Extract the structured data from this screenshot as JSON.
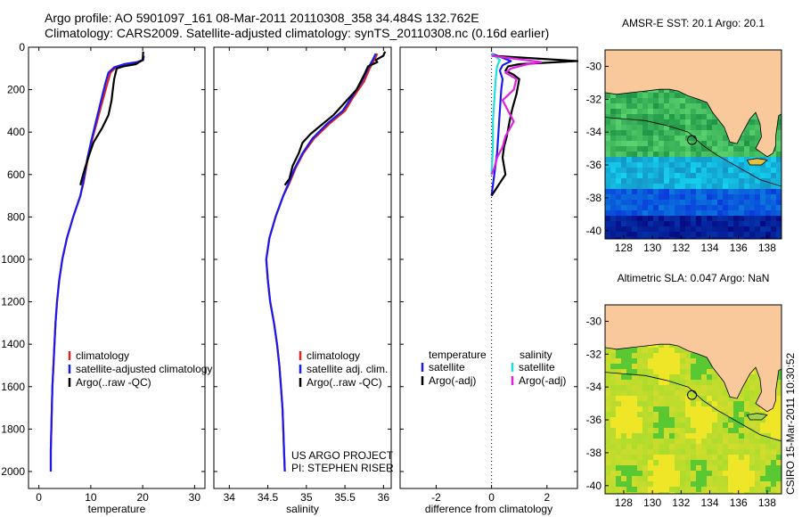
{
  "header": {
    "line1": "Argo profile: AO 5901097_161 08-Mar-2011 20110308_358 34.484S 132.762E",
    "line2": "Climatology: CARS2009. Satellite-adjusted climatology: synTS_20110308.nc (0.16d earlier)"
  },
  "footer": {
    "stamp": "CSIRO 15-Mar-2011 10:30:52"
  },
  "colors": {
    "climatology": "#dd2222",
    "satellite": "#1a1aee",
    "argo": "#000000",
    "satellite_salinity": "#22dddd",
    "argo_salinity": "#e020e0",
    "land": "#f9c89b"
  },
  "chart_data": [
    {
      "type": "line",
      "id": "temperature",
      "xlabel": "temperature",
      "xlim": [
        -2,
        32
      ],
      "ylim": [
        2080,
        0
      ],
      "xticks": [
        0,
        10,
        20,
        30
      ],
      "yticks": [
        0,
        200,
        400,
        600,
        800,
        1000,
        1200,
        1400,
        1600,
        1800,
        2000
      ],
      "legend": [
        "climatology",
        "satellite-adjusted climatology",
        "Argo(..raw -QC)"
      ],
      "series": [
        {
          "name": "climatology",
          "color": "#dd2222",
          "points": [
            [
              20.2,
              40
            ],
            [
              20.1,
              60
            ],
            [
              19.0,
              70
            ],
            [
              16.5,
              80
            ],
            [
              14.8,
              95
            ],
            [
              13.8,
              120
            ],
            [
              13.2,
              170
            ],
            [
              12.3,
              250
            ],
            [
              11.2,
              350
            ],
            [
              10.1,
              450
            ],
            [
              9.4,
              530
            ],
            [
              8.6,
              640
            ],
            [
              8.0,
              700
            ],
            [
              6.6,
              800
            ],
            [
              5.4,
              900
            ],
            [
              4.5,
              1000
            ],
            [
              3.9,
              1100
            ],
            [
              3.5,
              1200
            ],
            [
              3.2,
              1300
            ],
            [
              3.0,
              1400
            ],
            [
              2.8,
              1500
            ],
            [
              2.6,
              1600
            ],
            [
              2.5,
              1700
            ],
            [
              2.4,
              1800
            ],
            [
              2.3,
              1900
            ],
            [
              2.3,
              2000
            ]
          ]
        },
        {
          "name": "satellite-adjusted climatology",
          "color": "#1a1aee",
          "points": [
            [
              20.2,
              40
            ],
            [
              20.1,
              60
            ],
            [
              18.9,
              70
            ],
            [
              16.4,
              80
            ],
            [
              14.5,
              95
            ],
            [
              13.4,
              120
            ],
            [
              12.8,
              170
            ],
            [
              12.0,
              250
            ],
            [
              11.0,
              350
            ],
            [
              10.0,
              450
            ],
            [
              9.3,
              530
            ],
            [
              8.5,
              640
            ],
            [
              8.0,
              700
            ],
            [
              6.6,
              800
            ],
            [
              5.4,
              900
            ],
            [
              4.5,
              1000
            ],
            [
              3.9,
              1100
            ],
            [
              3.5,
              1200
            ],
            [
              3.2,
              1300
            ],
            [
              3.0,
              1400
            ],
            [
              2.8,
              1500
            ],
            [
              2.6,
              1600
            ],
            [
              2.5,
              1700
            ],
            [
              2.4,
              1800
            ],
            [
              2.3,
              1900
            ],
            [
              2.3,
              2000
            ]
          ]
        },
        {
          "name": "Argo(..raw -QC)",
          "color": "#000000",
          "points": [
            [
              20.1,
              20
            ],
            [
              20.0,
              60
            ],
            [
              18.7,
              80
            ],
            [
              16.3,
              90
            ],
            [
              15.0,
              100
            ],
            [
              14.5,
              150
            ],
            [
              14.2,
              210
            ],
            [
              14.0,
              250
            ],
            [
              13.4,
              320
            ],
            [
              12.2,
              380
            ],
            [
              10.5,
              450
            ],
            [
              9.8,
              500
            ],
            [
              9.0,
              560
            ],
            [
              8.4,
              610
            ],
            [
              8.0,
              650
            ]
          ]
        }
      ]
    },
    {
      "type": "line",
      "id": "salinity",
      "xlabel": "salinity",
      "xlim": [
        33.8,
        36.1
      ],
      "ylim": [
        2080,
        0
      ],
      "xticks": [
        34,
        34.5,
        35,
        35.5,
        36
      ],
      "yticks": [
        0,
        200,
        400,
        600,
        800,
        1000,
        1200,
        1400,
        1600,
        1800,
        2000
      ],
      "legend": [
        "climatology",
        "satellite adj. clim.",
        "Argo(..raw -QC)"
      ],
      "annotation": [
        "US ARGO PROJECT",
        "PI: STEPHEN RISER"
      ],
      "series": [
        {
          "name": "climatology",
          "color": "#dd2222",
          "points": [
            [
              35.92,
              30
            ],
            [
              35.88,
              60
            ],
            [
              35.82,
              100
            ],
            [
              35.75,
              160
            ],
            [
              35.6,
              240
            ],
            [
              35.5,
              300
            ],
            [
              35.3,
              360
            ],
            [
              35.1,
              430
            ],
            [
              34.96,
              500
            ],
            [
              34.86,
              570
            ],
            [
              34.78,
              640
            ],
            [
              34.7,
              700
            ],
            [
              34.6,
              800
            ],
            [
              34.52,
              900
            ],
            [
              34.48,
              1000
            ],
            [
              34.5,
              1100
            ],
            [
              34.53,
              1200
            ],
            [
              34.58,
              1300
            ],
            [
              34.62,
              1400
            ],
            [
              34.65,
              1500
            ],
            [
              34.67,
              1600
            ],
            [
              34.69,
              1700
            ],
            [
              34.7,
              1800
            ],
            [
              34.71,
              1900
            ],
            [
              34.72,
              2000
            ]
          ]
        },
        {
          "name": "satellite adj. clim.",
          "color": "#1a1aee",
          "points": [
            [
              35.9,
              30
            ],
            [
              35.86,
              60
            ],
            [
              35.8,
              100
            ],
            [
              35.72,
              160
            ],
            [
              35.58,
              240
            ],
            [
              35.47,
              300
            ],
            [
              35.27,
              360
            ],
            [
              35.08,
              430
            ],
            [
              34.95,
              500
            ],
            [
              34.85,
              570
            ],
            [
              34.77,
              640
            ],
            [
              34.7,
              700
            ],
            [
              34.6,
              800
            ],
            [
              34.52,
              900
            ],
            [
              34.48,
              1000
            ],
            [
              34.5,
              1100
            ],
            [
              34.53,
              1200
            ],
            [
              34.58,
              1300
            ],
            [
              34.62,
              1400
            ],
            [
              34.65,
              1500
            ],
            [
              34.67,
              1600
            ],
            [
              34.69,
              1700
            ],
            [
              34.7,
              1800
            ],
            [
              34.71,
              1900
            ],
            [
              34.72,
              2000
            ]
          ]
        },
        {
          "name": "Argo(..raw -QC)",
          "color": "#000000",
          "points": [
            [
              36.02,
              20
            ],
            [
              36.0,
              40
            ],
            [
              35.9,
              60
            ],
            [
              35.92,
              70
            ],
            [
              35.8,
              90
            ],
            [
              35.75,
              130
            ],
            [
              35.65,
              200
            ],
            [
              35.5,
              260
            ],
            [
              35.35,
              320
            ],
            [
              35.15,
              380
            ],
            [
              35.05,
              410
            ],
            [
              34.95,
              450
            ],
            [
              34.9,
              500
            ],
            [
              34.82,
              560
            ],
            [
              34.78,
              620
            ],
            [
              34.72,
              650
            ]
          ]
        }
      ]
    },
    {
      "type": "line",
      "id": "difference",
      "xlabel": "difference from climatology",
      "xlim": [
        -3.3,
        3.1
      ],
      "ylim": [
        2080,
        0
      ],
      "xticks": [
        -2,
        0,
        2
      ],
      "yticks": [
        0,
        200,
        400,
        600,
        800,
        1000,
        1200,
        1400,
        1600,
        1800,
        2000
      ],
      "legend_headers": [
        "temperature",
        "salinity"
      ],
      "legend": [
        "satellite",
        "Argo(-adj)",
        "satellite",
        "Argo(-adj)"
      ],
      "series": [
        {
          "name": "satellite",
          "group": "temperature",
          "color": "#1a1aee",
          "points": [
            [
              0,
              30
            ],
            [
              0.7,
              65
            ],
            [
              0.4,
              85
            ],
            [
              0.3,
              110
            ],
            [
              0.4,
              150
            ],
            [
              0.35,
              200
            ],
            [
              0.3,
              300
            ],
            [
              0.25,
              400
            ],
            [
              0.2,
              500
            ],
            [
              0.1,
              600
            ],
            [
              0,
              700
            ]
          ]
        },
        {
          "name": "Argo(-adj)",
          "group": "temperature",
          "color": "#000000",
          "points": [
            [
              0,
              40
            ],
            [
              3.1,
              65
            ],
            [
              1.0,
              80
            ],
            [
              0.6,
              90
            ],
            [
              0.5,
              110
            ],
            [
              0.8,
              130
            ],
            [
              1.0,
              150
            ],
            [
              0.9,
              220
            ],
            [
              0.75,
              290
            ],
            [
              0.65,
              350
            ],
            [
              0.55,
              420
            ],
            [
              0.45,
              470
            ],
            [
              0.4,
              520
            ],
            [
              0.45,
              560
            ],
            [
              0.5,
              600
            ],
            [
              0.35,
              630
            ],
            [
              0,
              700
            ]
          ]
        },
        {
          "name": "satellite",
          "group": "salinity",
          "color": "#22dddd",
          "points": [
            [
              0,
              30
            ],
            [
              0.3,
              60
            ],
            [
              0.2,
              90
            ],
            [
              0.15,
              150
            ],
            [
              0.1,
              250
            ],
            [
              0.05,
              350
            ],
            [
              0.05,
              450
            ],
            [
              0.02,
              550
            ],
            [
              0,
              600
            ]
          ]
        },
        {
          "name": "Argo(-adj)",
          "group": "salinity",
          "color": "#e020e0",
          "points": [
            [
              0,
              40
            ],
            [
              1.8,
              70
            ],
            [
              1.3,
              80
            ],
            [
              0.7,
              100
            ],
            [
              0.5,
              120
            ],
            [
              0.9,
              150
            ],
            [
              0.8,
              200
            ],
            [
              0.4,
              250
            ],
            [
              0.6,
              300
            ],
            [
              0.8,
              350
            ],
            [
              0.5,
              420
            ],
            [
              0.4,
              470
            ],
            [
              0.2,
              520
            ],
            [
              0.1,
              570
            ],
            [
              0,
              600
            ]
          ]
        }
      ]
    },
    {
      "type": "heatmap",
      "id": "sst-map",
      "title": "AMSR-E SST: 20.1 Argo: 20.1",
      "xlim": [
        126.7,
        139
      ],
      "ylim": [
        -40.5,
        -29
      ],
      "xticks": [
        128,
        130,
        132,
        134,
        136,
        138
      ],
      "yticks": [
        -30,
        -32,
        -34,
        -36,
        -38,
        -40
      ],
      "profile_location": [
        132.762,
        -34.484
      ]
    },
    {
      "type": "heatmap",
      "id": "sla-map",
      "title": "Altimetric SLA: 0.047 Argo: NaN",
      "xlim": [
        126.7,
        139
      ],
      "ylim": [
        -40.5,
        -29
      ],
      "xticks": [
        128,
        130,
        132,
        134,
        136,
        138
      ],
      "yticks": [
        -30,
        -32,
        -34,
        -36,
        -38,
        -40
      ],
      "profile_location": [
        132.762,
        -34.484
      ]
    }
  ]
}
